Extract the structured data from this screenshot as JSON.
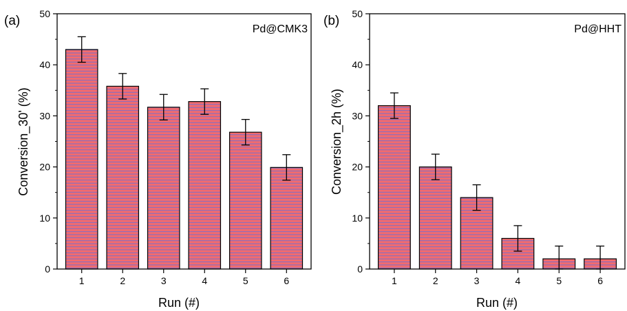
{
  "chart_data": [
    {
      "type": "bar",
      "panel_label": "(a)",
      "title": "Pd@CMK3",
      "xlabel": "Run (#)",
      "ylabel": "Conversion_30' (%)",
      "ylim": [
        0,
        50
      ],
      "yticks": [
        "0",
        "10",
        "20",
        "30",
        "40",
        "50"
      ],
      "categories": [
        "1",
        "2",
        "3",
        "4",
        "5",
        "6"
      ],
      "values": [
        43,
        35.8,
        31.7,
        32.8,
        26.8,
        19.9
      ],
      "errors": [
        2.5,
        2.5,
        2.5,
        2.5,
        2.5,
        2.5
      ],
      "bar_color": "#f26b6e",
      "hatch_color": "#6a6fd6"
    },
    {
      "type": "bar",
      "panel_label": "(b)",
      "title": "Pd@HHT",
      "xlabel": "Run (#)",
      "ylabel": "Conversion_2h (%)",
      "ylim": [
        0,
        50
      ],
      "yticks": [
        "0",
        "10",
        "20",
        "30",
        "40",
        "50"
      ],
      "categories": [
        "1",
        "2",
        "3",
        "4",
        "5",
        "6"
      ],
      "values": [
        32,
        20,
        14,
        6,
        2,
        2
      ],
      "errors": [
        2.5,
        2.5,
        2.5,
        2.5,
        2.5,
        2.5
      ],
      "bar_color": "#f26b6e",
      "hatch_color": "#6a6fd6"
    }
  ]
}
